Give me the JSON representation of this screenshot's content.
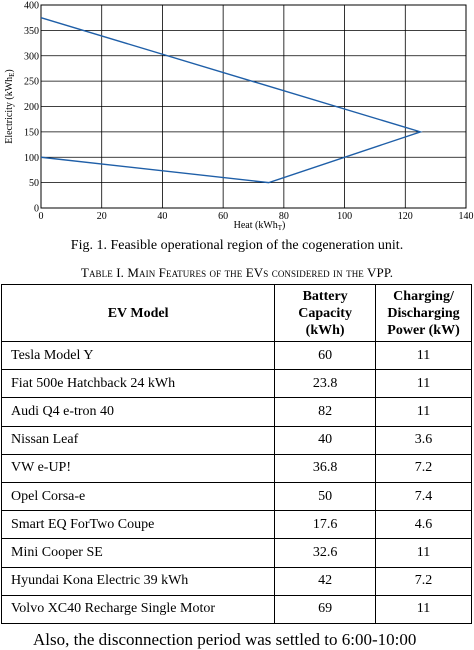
{
  "figure": {
    "caption": "Fig. 1. Feasible operational region of the cogeneration unit."
  },
  "chart_data": {
    "type": "line",
    "title": "",
    "xlabel_main": "Heat (kWh",
    "xlabel_sub": "T",
    "xlabel_close": ")",
    "ylabel_main": "Electricity (kWh",
    "ylabel_sub": "E",
    "ylabel_close": ")",
    "xlim": [
      0,
      140
    ],
    "ylim": [
      0,
      400
    ],
    "x_ticks": [
      "0",
      "20",
      "40",
      "60",
      "80",
      "100",
      "120",
      "140"
    ],
    "y_ticks": [
      "0",
      "50",
      "100",
      "150",
      "200",
      "250",
      "300",
      "350",
      "400"
    ],
    "grid": true,
    "series": [
      {
        "points": [
          [
            0,
            375
          ],
          [
            125,
            150
          ],
          [
            75,
            50
          ],
          [
            0,
            100
          ]
        ],
        "color": "#1f5fa8"
      }
    ]
  },
  "table": {
    "caption": "Table I. Main Features of the EVs considered in the VPP.",
    "headers": {
      "model": "EV Model",
      "capacity_1": "Battery",
      "capacity_2": "Capacity",
      "capacity_3": "(kWh)",
      "power_1": "Charging/",
      "power_2": "Discharging",
      "power_3": "Power (kW)"
    },
    "rows": [
      {
        "model": "Tesla Model Y",
        "capacity": "60",
        "power": "11"
      },
      {
        "model": "Fiat 500e Hatchback 24 kWh",
        "capacity": "23.8",
        "power": "11"
      },
      {
        "model": "Audi Q4 e-tron 40",
        "capacity": "82",
        "power": "11"
      },
      {
        "model": "Nissan Leaf",
        "capacity": "40",
        "power": "3.6"
      },
      {
        "model": "VW e-UP!",
        "capacity": "36.8",
        "power": "7.2"
      },
      {
        "model": "Opel Corsa-e",
        "capacity": "50",
        "power": "7.4"
      },
      {
        "model": "Smart EQ ForTwo Coupe",
        "capacity": "17.6",
        "power": "4.6"
      },
      {
        "model": "Mini Cooper SE",
        "capacity": "32.6",
        "power": "11"
      },
      {
        "model": "Hyundai Kona Electric 39 kWh",
        "capacity": "42",
        "power": "7.2"
      },
      {
        "model": "Volvo XC40 Recharge Single Motor",
        "capacity": "69",
        "power": "11"
      }
    ]
  },
  "body_text": "Also, the disconnection period was settled to 6:00-10:00"
}
